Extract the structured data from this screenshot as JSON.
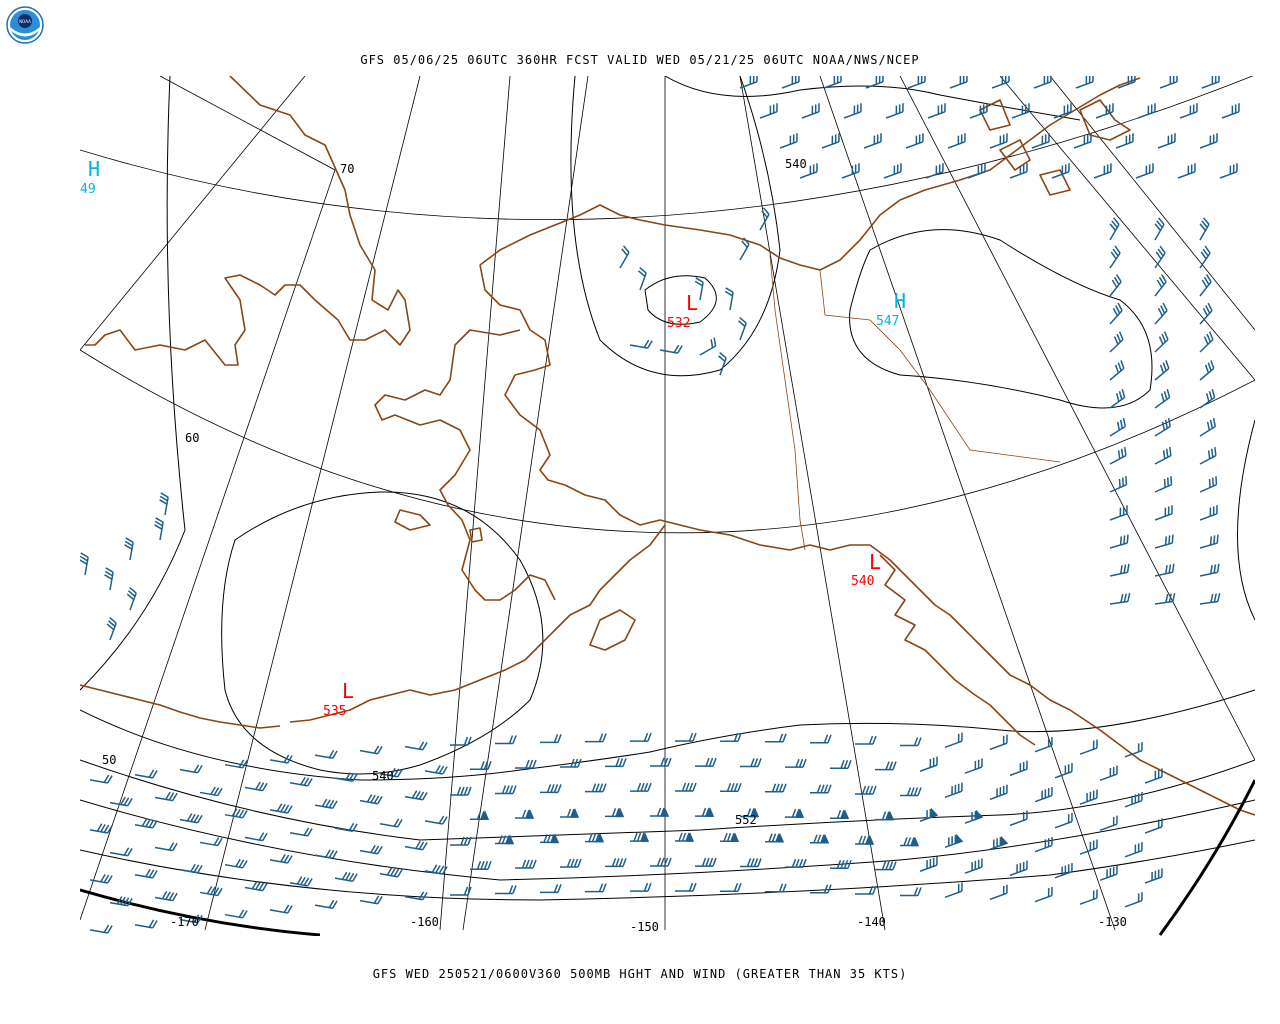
{
  "header": {
    "title": "GFS 05/06/25 06UTC 360HR FCST VALID WED 05/21/25 06UTC NOAA/NWS/NCEP",
    "logo_text": "NOAA"
  },
  "footer": {
    "caption": "GFS WED 250521/0600V360 500MB HGHT AND WIND (GREATER THAN 35 KTS)"
  },
  "colors": {
    "coast": "#8b4513",
    "contour": "#000000",
    "barb": "#1f5f8b",
    "low": "#ff0000",
    "high": "#00b4e6"
  },
  "grid_labels": {
    "lat": [
      "70",
      "60",
      "50"
    ],
    "lon": [
      "-170",
      "-160",
      "-150",
      "-140",
      "-130"
    ]
  },
  "contour_labels": [
    "540",
    "540",
    "552"
  ],
  "pressure_centers": [
    {
      "type": "H",
      "value": "49",
      "color": "high"
    },
    {
      "type": "L",
      "value": "532",
      "color": "low"
    },
    {
      "type": "H",
      "value": "547",
      "color": "high"
    },
    {
      "type": "L",
      "value": "540",
      "color": "low"
    },
    {
      "type": "L",
      "value": "535",
      "color": "low"
    }
  ]
}
